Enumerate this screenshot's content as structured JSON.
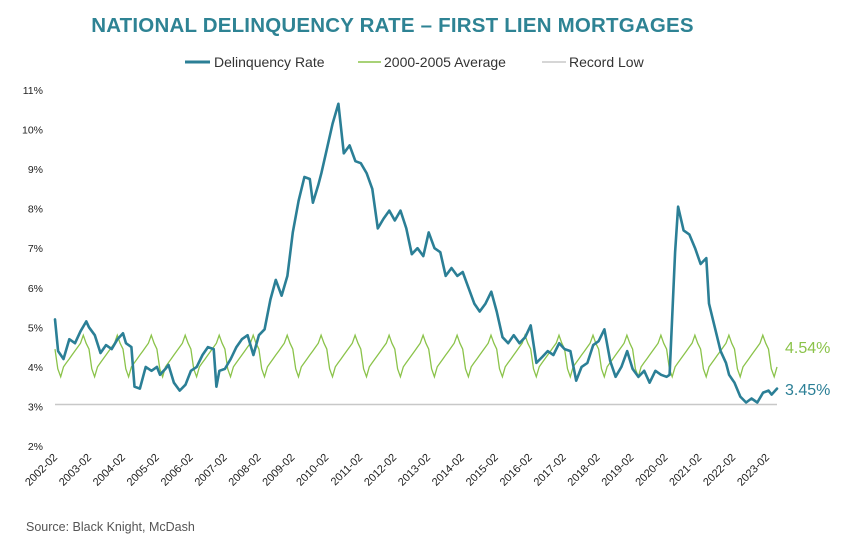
{
  "chart_data": {
    "type": "line",
    "title": "NATIONAL DELINQUENCY RATE – FIRST LIEN MORTGAGES",
    "source": "Source: Black Knight, McDash",
    "xlabel": "",
    "ylabel": "",
    "ylim": [
      2,
      11
    ],
    "y_ticks": [
      "11%",
      "10%",
      "9%",
      "8%",
      "7%",
      "6%",
      "5%",
      "4%",
      "3%",
      "2%"
    ],
    "x_ticks": [
      "2002-02",
      "2003-02",
      "2004-02",
      "2005-02",
      "2006-02",
      "2007-02",
      "2008-02",
      "2009-02",
      "2010-02",
      "2011-02",
      "2012-02",
      "2013-02",
      "2014-02",
      "2015-02",
      "2016-02",
      "2017-02",
      "2018-02",
      "2019-02",
      "2020-02",
      "2021-02",
      "2022-02",
      "2023-02"
    ],
    "legend_position": "top",
    "series": [
      {
        "name": "Delinquency Rate",
        "color": "#2b7f96",
        "end_label": "3.45%",
        "points": [
          [
            2002.08,
            5.2
          ],
          [
            2002.17,
            4.4
          ],
          [
            2002.33,
            4.2
          ],
          [
            2002.5,
            4.7
          ],
          [
            2002.67,
            4.6
          ],
          [
            2002.83,
            4.9
          ],
          [
            2003.0,
            5.15
          ],
          [
            2003.08,
            5.0
          ],
          [
            2003.25,
            4.8
          ],
          [
            2003.42,
            4.35
          ],
          [
            2003.58,
            4.55
          ],
          [
            2003.75,
            4.45
          ],
          [
            2003.92,
            4.7
          ],
          [
            2004.08,
            4.85
          ],
          [
            2004.17,
            4.6
          ],
          [
            2004.33,
            4.5
          ],
          [
            2004.42,
            3.5
          ],
          [
            2004.58,
            3.45
          ],
          [
            2004.75,
            4.0
          ],
          [
            2004.92,
            3.9
          ],
          [
            2005.08,
            4.0
          ],
          [
            2005.17,
            3.8
          ],
          [
            2005.33,
            3.95
          ],
          [
            2005.42,
            4.05
          ],
          [
            2005.58,
            3.6
          ],
          [
            2005.75,
            3.4
          ],
          [
            2005.92,
            3.55
          ],
          [
            2006.08,
            3.9
          ],
          [
            2006.25,
            4.0
          ],
          [
            2006.42,
            4.3
          ],
          [
            2006.58,
            4.5
          ],
          [
            2006.75,
            4.45
          ],
          [
            2006.83,
            3.5
          ],
          [
            2006.92,
            3.9
          ],
          [
            2007.08,
            3.95
          ],
          [
            2007.25,
            4.2
          ],
          [
            2007.42,
            4.5
          ],
          [
            2007.58,
            4.7
          ],
          [
            2007.75,
            4.8
          ],
          [
            2007.92,
            4.3
          ],
          [
            2008.08,
            4.8
          ],
          [
            2008.25,
            4.95
          ],
          [
            2008.42,
            5.7
          ],
          [
            2008.58,
            6.2
          ],
          [
            2008.75,
            5.8
          ],
          [
            2008.92,
            6.3
          ],
          [
            2009.08,
            7.4
          ],
          [
            2009.25,
            8.2
          ],
          [
            2009.42,
            8.8
          ],
          [
            2009.58,
            8.75
          ],
          [
            2009.67,
            8.15
          ],
          [
            2009.83,
            8.6
          ],
          [
            2009.92,
            8.9
          ],
          [
            2010.08,
            9.5
          ],
          [
            2010.25,
            10.15
          ],
          [
            2010.42,
            10.65
          ],
          [
            2010.58,
            9.4
          ],
          [
            2010.75,
            9.6
          ],
          [
            2010.92,
            9.2
          ],
          [
            2011.08,
            9.15
          ],
          [
            2011.25,
            8.9
          ],
          [
            2011.42,
            8.5
          ],
          [
            2011.58,
            7.5
          ],
          [
            2011.75,
            7.75
          ],
          [
            2011.92,
            7.95
          ],
          [
            2012.08,
            7.7
          ],
          [
            2012.25,
            7.95
          ],
          [
            2012.42,
            7.5
          ],
          [
            2012.58,
            6.85
          ],
          [
            2012.75,
            7.0
          ],
          [
            2012.92,
            6.8
          ],
          [
            2013.08,
            7.4
          ],
          [
            2013.25,
            7.0
          ],
          [
            2013.42,
            6.9
          ],
          [
            2013.58,
            6.3
          ],
          [
            2013.75,
            6.5
          ],
          [
            2013.92,
            6.3
          ],
          [
            2014.08,
            6.4
          ],
          [
            2014.25,
            6.0
          ],
          [
            2014.42,
            5.6
          ],
          [
            2014.58,
            5.4
          ],
          [
            2014.75,
            5.6
          ],
          [
            2014.92,
            5.9
          ],
          [
            2015.08,
            5.4
          ],
          [
            2015.25,
            4.75
          ],
          [
            2015.42,
            4.6
          ],
          [
            2015.58,
            4.8
          ],
          [
            2015.75,
            4.6
          ],
          [
            2015.92,
            4.75
          ],
          [
            2016.08,
            5.05
          ],
          [
            2016.25,
            4.1
          ],
          [
            2016.42,
            4.25
          ],
          [
            2016.58,
            4.4
          ],
          [
            2016.75,
            4.3
          ],
          [
            2016.92,
            4.6
          ],
          [
            2017.08,
            4.45
          ],
          [
            2017.25,
            4.4
          ],
          [
            2017.42,
            3.65
          ],
          [
            2017.58,
            4.0
          ],
          [
            2017.75,
            4.1
          ],
          [
            2017.92,
            4.55
          ],
          [
            2018.08,
            4.65
          ],
          [
            2018.25,
            4.95
          ],
          [
            2018.42,
            4.15
          ],
          [
            2018.58,
            3.75
          ],
          [
            2018.75,
            4.0
          ],
          [
            2018.92,
            4.4
          ],
          [
            2019.08,
            3.95
          ],
          [
            2019.25,
            3.75
          ],
          [
            2019.42,
            3.9
          ],
          [
            2019.58,
            3.6
          ],
          [
            2019.75,
            3.9
          ],
          [
            2019.92,
            3.8
          ],
          [
            2020.08,
            3.75
          ],
          [
            2020.17,
            3.8
          ],
          [
            2020.33,
            6.9
          ],
          [
            2020.42,
            8.05
          ],
          [
            2020.58,
            7.45
          ],
          [
            2020.75,
            7.35
          ],
          [
            2020.92,
            7.0
          ],
          [
            2021.08,
            6.6
          ],
          [
            2021.25,
            6.75
          ],
          [
            2021.33,
            5.6
          ],
          [
            2021.5,
            5.0
          ],
          [
            2021.67,
            4.4
          ],
          [
            2021.83,
            4.1
          ],
          [
            2021.92,
            3.8
          ],
          [
            2022.08,
            3.6
          ],
          [
            2022.25,
            3.25
          ],
          [
            2022.42,
            3.1
          ],
          [
            2022.58,
            3.2
          ],
          [
            2022.75,
            3.1
          ],
          [
            2022.92,
            3.35
          ],
          [
            2023.08,
            3.4
          ],
          [
            2023.17,
            3.3
          ],
          [
            2023.33,
            3.45
          ]
        ]
      },
      {
        "name": "2000-2005 Average",
        "color": "#8bc34a",
        "end_label": "4.54%",
        "seasonal_pattern": [
          4.45,
          3.95,
          3.75,
          4.0,
          4.1,
          4.2,
          4.3,
          4.4,
          4.5,
          4.6,
          4.8,
          4.6
        ],
        "start": 2002.08,
        "end": 2023.33
      },
      {
        "name": "Record Low",
        "color": "#c8c8c8",
        "value": 3.05
      }
    ]
  }
}
